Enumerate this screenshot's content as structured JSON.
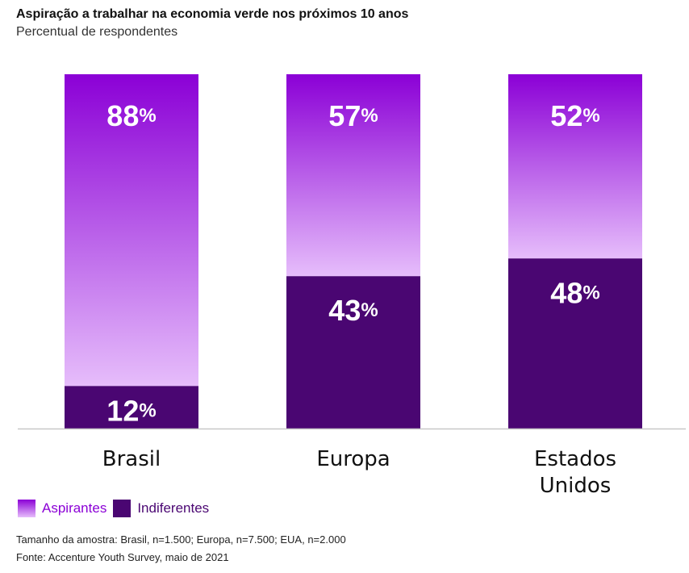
{
  "title": "Aspiração a trabalhar na economia verde nos próximos 10 anos",
  "subtitle": "Percentual de respondentes",
  "colors": {
    "aspirantes_top": "#8b00d6",
    "aspirantes_bottom": "#e6bdfb",
    "indiferentes": "#4a0672",
    "label": "#ffffff",
    "axis": "#c8c8c8"
  },
  "chart_data": {
    "type": "bar",
    "stacked": true,
    "categories": [
      "Brasil",
      "Europa",
      "Estados Unidos"
    ],
    "category_label_lines": [
      [
        "Brasil"
      ],
      [
        "Europa"
      ],
      [
        "Estados",
        "Unidos"
      ]
    ],
    "series": [
      {
        "name": "Indiferentes",
        "values": [
          12,
          43,
          48
        ]
      },
      {
        "name": "Aspirantes",
        "values": [
          88,
          57,
          52
        ]
      }
    ],
    "value_suffix": "%",
    "ylim": [
      0,
      100
    ],
    "grid": false,
    "legend_position": "bottom-left"
  },
  "legend": [
    {
      "label": "Aspirantes",
      "swatch": "aspirantes"
    },
    {
      "label": "Indiferentes",
      "swatch": "indiferentes"
    }
  ],
  "footnotes": [
    "Tamanho da amostra: Brasil, n=1.500; Europa, n=7.500; EUA, n=2.000",
    "Fonte: Accenture Youth Survey, maio de 2021"
  ]
}
